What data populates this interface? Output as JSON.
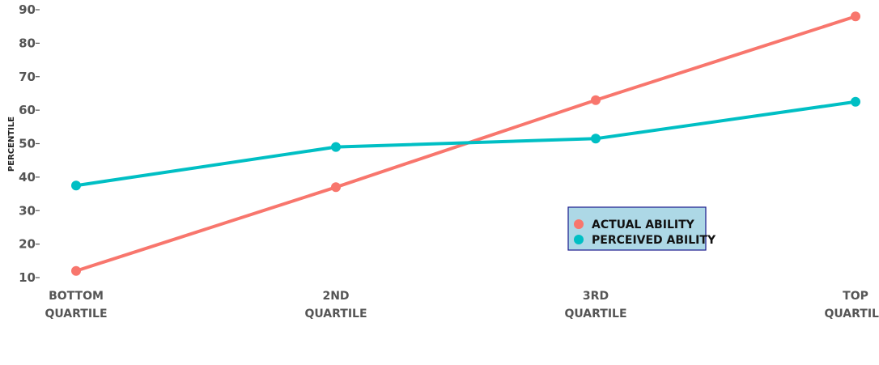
{
  "chart_data": {
    "type": "line",
    "categories": [
      "BOTTOM\nQUARTILE",
      "2ND\nQUARTILE",
      "3RD\nQUARTILE",
      "TOP\nQUARTILE"
    ],
    "series": [
      {
        "name": "ACTUAL ABILITY",
        "values": [
          12,
          37,
          63,
          88
        ],
        "color": "#F8766D"
      },
      {
        "name": "PERCEIVED ABILITY",
        "values": [
          37.5,
          49,
          51.5,
          62.5
        ],
        "color": "#00BFC4"
      }
    ],
    "title": "",
    "xlabel": "",
    "ylabel": "PERCENTILE",
    "ylim": [
      10,
      90
    ],
    "yticks": [
      10,
      20,
      30,
      40,
      50,
      60,
      70,
      80,
      90
    ],
    "legend": {
      "position": "bottom-right",
      "background": "#ADD8E6",
      "border": "#1A1A8C"
    },
    "grid": false
  }
}
